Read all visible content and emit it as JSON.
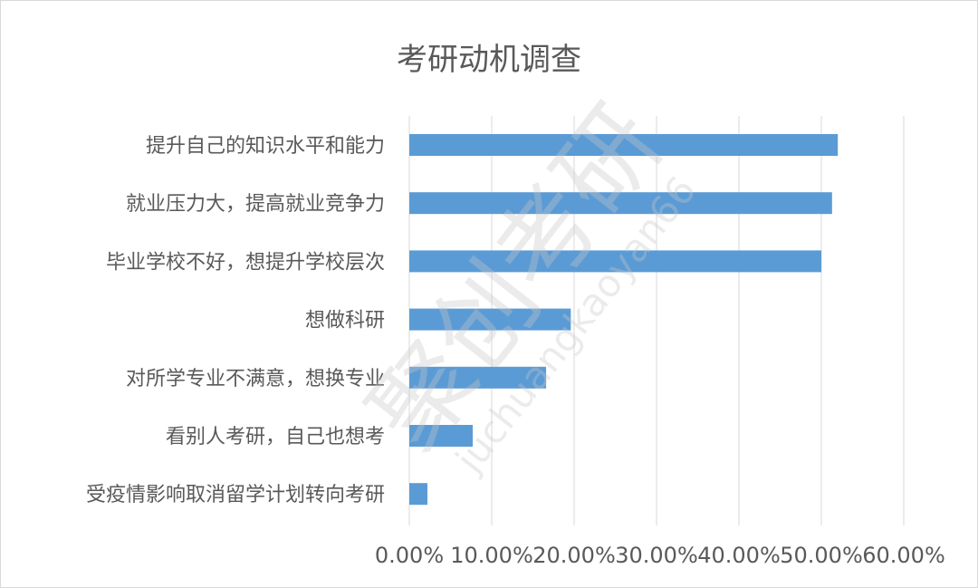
{
  "chart_data": {
    "type": "bar",
    "orientation": "horizontal",
    "title": "考研动机调查",
    "categories": [
      "提升自己的知识水平和能力",
      "就业压力大，提高就业竞争力",
      "毕业学校不好，想提升学校层次",
      "想做科研",
      "对所学专业不满意，想换专业",
      "看别人考研，自己也想考",
      "受疫情影响取消留学计划转向考研"
    ],
    "values": [
      0.52,
      0.513,
      0.5,
      0.196,
      0.166,
      0.077,
      0.022
    ],
    "xlim": [
      0,
      0.6
    ],
    "xticks": [
      0,
      0.1,
      0.2,
      0.3,
      0.4,
      0.5,
      0.6
    ],
    "xtick_labels": [
      "0.00%",
      "10.00%",
      "20.00%",
      "30.00%",
      "40.00%",
      "50.00%",
      "60.00%"
    ],
    "bar_color": "#5b9bd5",
    "grid": "vertical",
    "legend": "none"
  },
  "watermark": {
    "brand": "聚创考研",
    "url": "juchuangkaoyan66"
  }
}
